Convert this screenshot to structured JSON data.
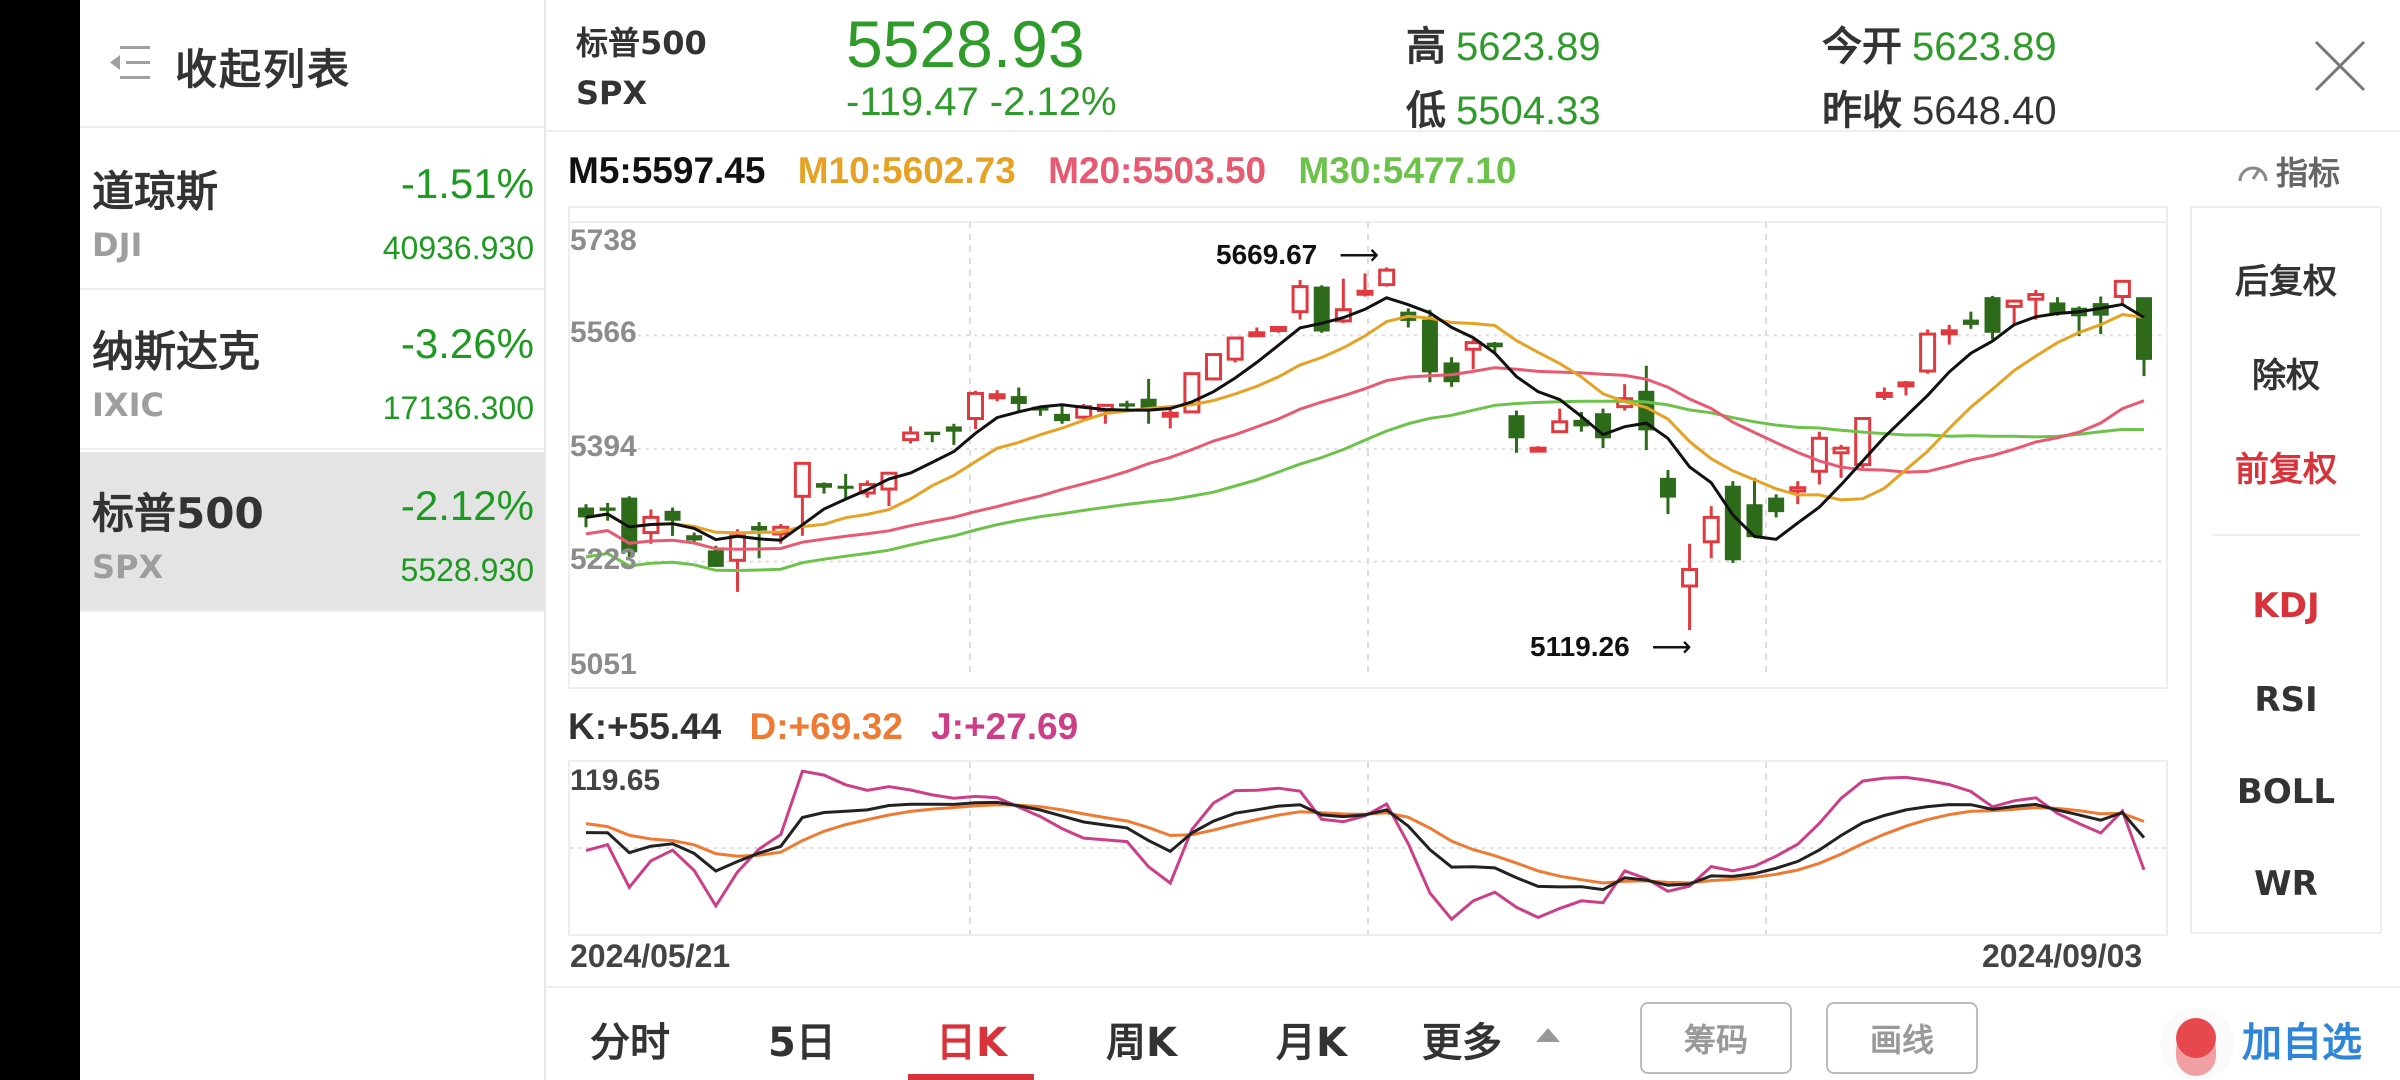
{
  "sidebar": {
    "collapse_label": "收起列表",
    "items": [
      {
        "name": "道琼斯",
        "code": "DJI",
        "pct": "-1.51%",
        "price": "40936.930",
        "selected": false
      },
      {
        "name": "纳斯达克",
        "code": "IXIC",
        "pct": "-3.26%",
        "price": "17136.300",
        "selected": false
      },
      {
        "name": "标普500",
        "code": "SPX",
        "pct": "-2.12%",
        "price": "5528.930",
        "selected": true
      }
    ]
  },
  "header": {
    "name": "标普500",
    "code": "SPX",
    "price": "5528.93",
    "change": "-119.47  -2.12%",
    "high_label": "高",
    "high": "5623.89",
    "low_label": "低",
    "low": "5504.33",
    "open_label": "今开",
    "open": "5623.89",
    "prev_close_label": "昨收",
    "prev_close": "5648.40"
  },
  "ma_legend": {
    "m5": "M5:5597.45",
    "m10": "M10:5602.73",
    "m20": "M20:5503.50",
    "m30": "M30:5477.10"
  },
  "indicator_button": "指标",
  "kdj_legend": {
    "k": "K:+55.44",
    "d": "D:+69.32",
    "j": "J:+27.69",
    "max": "119.65"
  },
  "dates": {
    "start": "2024/05/21",
    "end": "2024/09/03"
  },
  "right_panel": {
    "adjust": [
      {
        "label": "后复权",
        "active": false
      },
      {
        "label": "除权",
        "active": false
      },
      {
        "label": "前复权",
        "active": true
      }
    ],
    "indicators": [
      {
        "label": "KDJ",
        "active": true
      },
      {
        "label": "RSI",
        "active": false
      },
      {
        "label": "BOLL",
        "active": false
      },
      {
        "label": "WR",
        "active": false
      }
    ]
  },
  "bottom_bar": {
    "tabs": [
      {
        "label": "分时",
        "active": false
      },
      {
        "label": "5日",
        "active": false
      },
      {
        "label": "日K",
        "active": true
      },
      {
        "label": "周K",
        "active": false
      },
      {
        "label": "月K",
        "active": false
      },
      {
        "label": "更多",
        "active": false
      }
    ],
    "chips_button": "筹码",
    "draw_button": "画线",
    "add_favorite": "加自选"
  },
  "colors": {
    "up": "#e0393f",
    "down": "#2d6a1a",
    "m5": "#111111",
    "m10": "#e6a224",
    "m20": "#e85a72",
    "m30": "#6cc24a",
    "k": "#222222",
    "d": "#ee7a33",
    "j": "#cc3f88",
    "price_green": "#2e9b2a",
    "accent_red": "#d8333a",
    "link_blue": "#2f86d8"
  },
  "chart_data": [
    {
      "type": "candlestick",
      "title": "标普500 SPX 日K",
      "x_range": [
        "2024/05/21",
        "2024/09/03"
      ],
      "y_ticks": [
        5738,
        5566,
        5394,
        5223,
        5051
      ],
      "ylim": [
        5051,
        5738
      ],
      "annotations": [
        {
          "label": "5669.67",
          "type": "period_high"
        },
        {
          "label": "5119.26",
          "type": "period_low"
        }
      ],
      "ohlc": [
        [
          5305,
          5310,
          5275,
          5290
        ],
        [
          5305,
          5312,
          5285,
          5300
        ],
        [
          5320,
          5322,
          5225,
          5237
        ],
        [
          5267,
          5302,
          5250,
          5290
        ],
        [
          5300,
          5305,
          5262,
          5285
        ],
        [
          5263,
          5267,
          5253,
          5255
        ],
        [
          5240,
          5247,
          5215,
          5215
        ],
        [
          5225,
          5272,
          5177,
          5262
        ],
        [
          5277,
          5283,
          5228,
          5270
        ],
        [
          5265,
          5280,
          5250,
          5275
        ],
        [
          5322,
          5322,
          5262,
          5372
        ],
        [
          5342,
          5343,
          5326,
          5335
        ],
        [
          5338,
          5356,
          5318,
          5337
        ],
        [
          5327,
          5346,
          5320,
          5340
        ],
        [
          5333,
          5356,
          5307,
          5357
        ],
        [
          5408,
          5428,
          5402,
          5418
        ],
        [
          5420,
          5420,
          5404,
          5415
        ],
        [
          5428,
          5432,
          5400,
          5420
        ],
        [
          5440,
          5482,
          5424,
          5478
        ],
        [
          5475,
          5483,
          5466,
          5476
        ],
        [
          5474,
          5487,
          5450,
          5462
        ],
        [
          5458,
          5458,
          5444,
          5452
        ],
        [
          5447,
          5460,
          5432,
          5436
        ],
        [
          5442,
          5462,
          5437,
          5458
        ],
        [
          5452,
          5462,
          5432,
          5460
        ],
        [
          5463,
          5467,
          5450,
          5458
        ],
        [
          5470,
          5500,
          5432,
          5452
        ],
        [
          5445,
          5453,
          5425,
          5448
        ],
        [
          5450,
          5507,
          5450,
          5508
        ],
        [
          5500,
          5537,
          5498,
          5537
        ],
        [
          5530,
          5562,
          5525,
          5562
        ],
        [
          5570,
          5578,
          5564,
          5570
        ],
        [
          5575,
          5580,
          5570,
          5578
        ],
        [
          5602,
          5650,
          5590,
          5640
        ],
        [
          5640,
          5642,
          5570,
          5572
        ],
        [
          5588,
          5652,
          5585,
          5605
        ],
        [
          5632,
          5660,
          5625,
          5633
        ],
        [
          5643,
          5669,
          5640,
          5665
        ],
        [
          5602,
          5607,
          5578,
          5588
        ],
        [
          5590,
          5605,
          5495,
          5510
        ],
        [
          5525,
          5533,
          5488,
          5495
        ],
        [
          5545,
          5560,
          5515,
          5555
        ],
        [
          5555,
          5556,
          5540,
          5548
        ],
        [
          5445,
          5452,
          5388,
          5410
        ],
        [
          5395,
          5398,
          5390,
          5395
        ],
        [
          5420,
          5455,
          5418,
          5435
        ],
        [
          5438,
          5450,
          5420,
          5428
        ],
        [
          5448,
          5455,
          5395,
          5410
        ],
        [
          5458,
          5492,
          5452,
          5470
        ],
        [
          5482,
          5520,
          5392,
          5422
        ],
        [
          5350,
          5362,
          5295,
          5320
        ],
        [
          5186,
          5250,
          5119,
          5211
        ],
        [
          5253,
          5307,
          5228,
          5290
        ],
        [
          5338,
          5345,
          5221,
          5225
        ],
        [
          5310,
          5350,
          5270,
          5260
        ],
        [
          5320,
          5325,
          5290,
          5298
        ],
        [
          5330,
          5345,
          5310,
          5335
        ],
        [
          5360,
          5420,
          5340,
          5410
        ],
        [
          5388,
          5400,
          5350,
          5395
        ],
        [
          5370,
          5440,
          5365,
          5440
        ],
        [
          5478,
          5487,
          5468,
          5478
        ],
        [
          5490,
          5497,
          5475,
          5494
        ],
        [
          5512,
          5575,
          5508,
          5568
        ],
        [
          5570,
          5582,
          5552,
          5573
        ],
        [
          5590,
          5602,
          5576,
          5582
        ],
        [
          5624,
          5626,
          5560,
          5570
        ],
        [
          5610,
          5620,
          5580,
          5618
        ],
        [
          5621,
          5635,
          5590,
          5628
        ],
        [
          5616,
          5624,
          5596,
          5598
        ],
        [
          5608,
          5610,
          5565,
          5595
        ],
        [
          5615,
          5625,
          5568,
          5596
        ],
        [
          5625,
          5648,
          5612,
          5648
        ],
        [
          5623.89,
          5623.89,
          5504.33,
          5528.93
        ]
      ],
      "ma_series": [
        {
          "name": "M5",
          "last": 5597.45
        },
        {
          "name": "M10",
          "last": 5602.73
        },
        {
          "name": "M20",
          "last": 5503.5
        },
        {
          "name": "M30",
          "last": 5477.1
        }
      ]
    },
    {
      "type": "line",
      "title": "KDJ",
      "ylim_top": 119.65,
      "series": [
        {
          "name": "K",
          "last": 55.44
        },
        {
          "name": "D",
          "last": 69.32
        },
        {
          "name": "J",
          "last": 27.69
        }
      ]
    }
  ]
}
